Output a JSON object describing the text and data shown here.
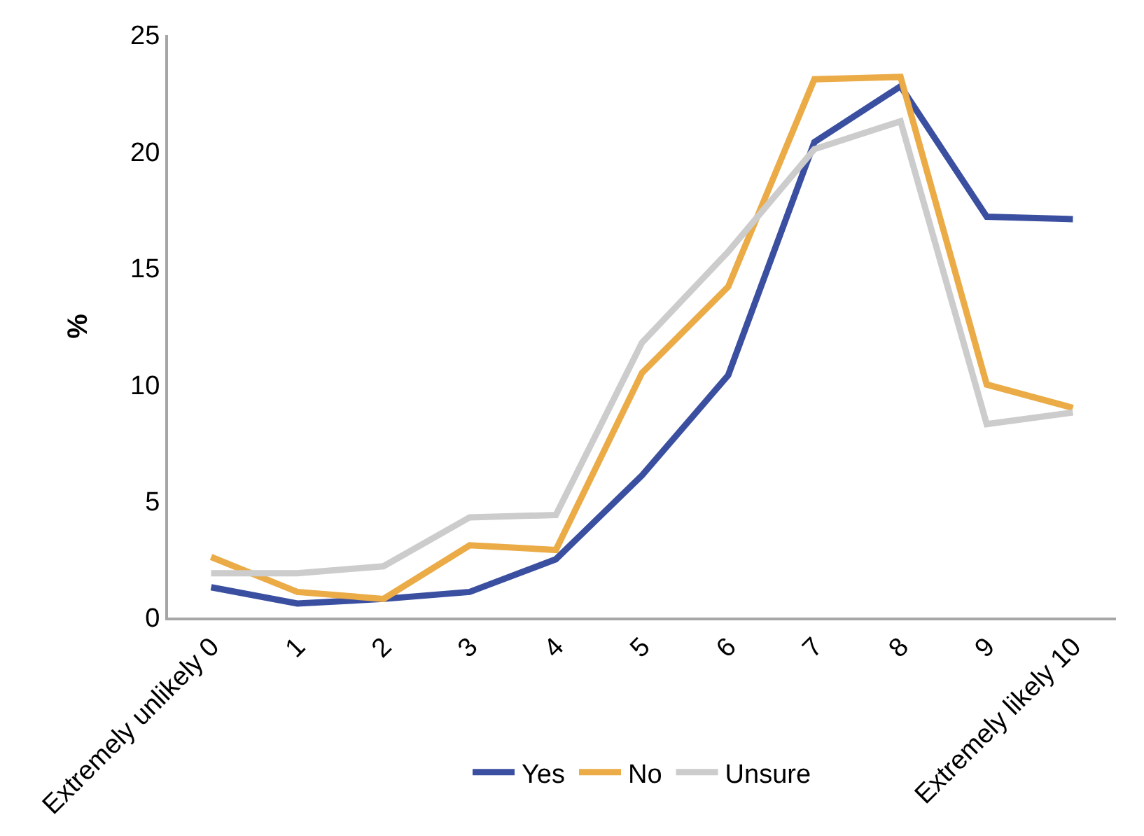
{
  "chart_data": {
    "type": "line",
    "ylabel": "%",
    "categories": [
      "Extremely unlikely 0",
      "1",
      "2",
      "3",
      "4",
      "5",
      "6",
      "7",
      "8",
      "9",
      "Extremely likely 10"
    ],
    "series": [
      {
        "name": "Yes",
        "color": "#3b4fa0",
        "values": [
          1.3,
          0.6,
          0.8,
          1.1,
          2.5,
          6.1,
          10.4,
          20.4,
          22.8,
          17.2,
          17.1
        ]
      },
      {
        "name": "No",
        "color": "#ebab46",
        "values": [
          2.6,
          1.1,
          0.8,
          3.1,
          2.9,
          10.5,
          14.2,
          23.1,
          23.2,
          10.0,
          9.0
        ]
      },
      {
        "name": "Unsure",
        "color": "#cccccc",
        "values": [
          1.9,
          1.9,
          2.2,
          4.3,
          4.4,
          11.8,
          15.7,
          20.1,
          21.3,
          8.3,
          8.8
        ]
      }
    ],
    "ylim": [
      0,
      25
    ],
    "yticks": [
      0,
      5,
      10,
      15,
      20,
      25
    ],
    "grid": false,
    "legend": "bottom",
    "marker": "none",
    "line_style": "solid"
  }
}
